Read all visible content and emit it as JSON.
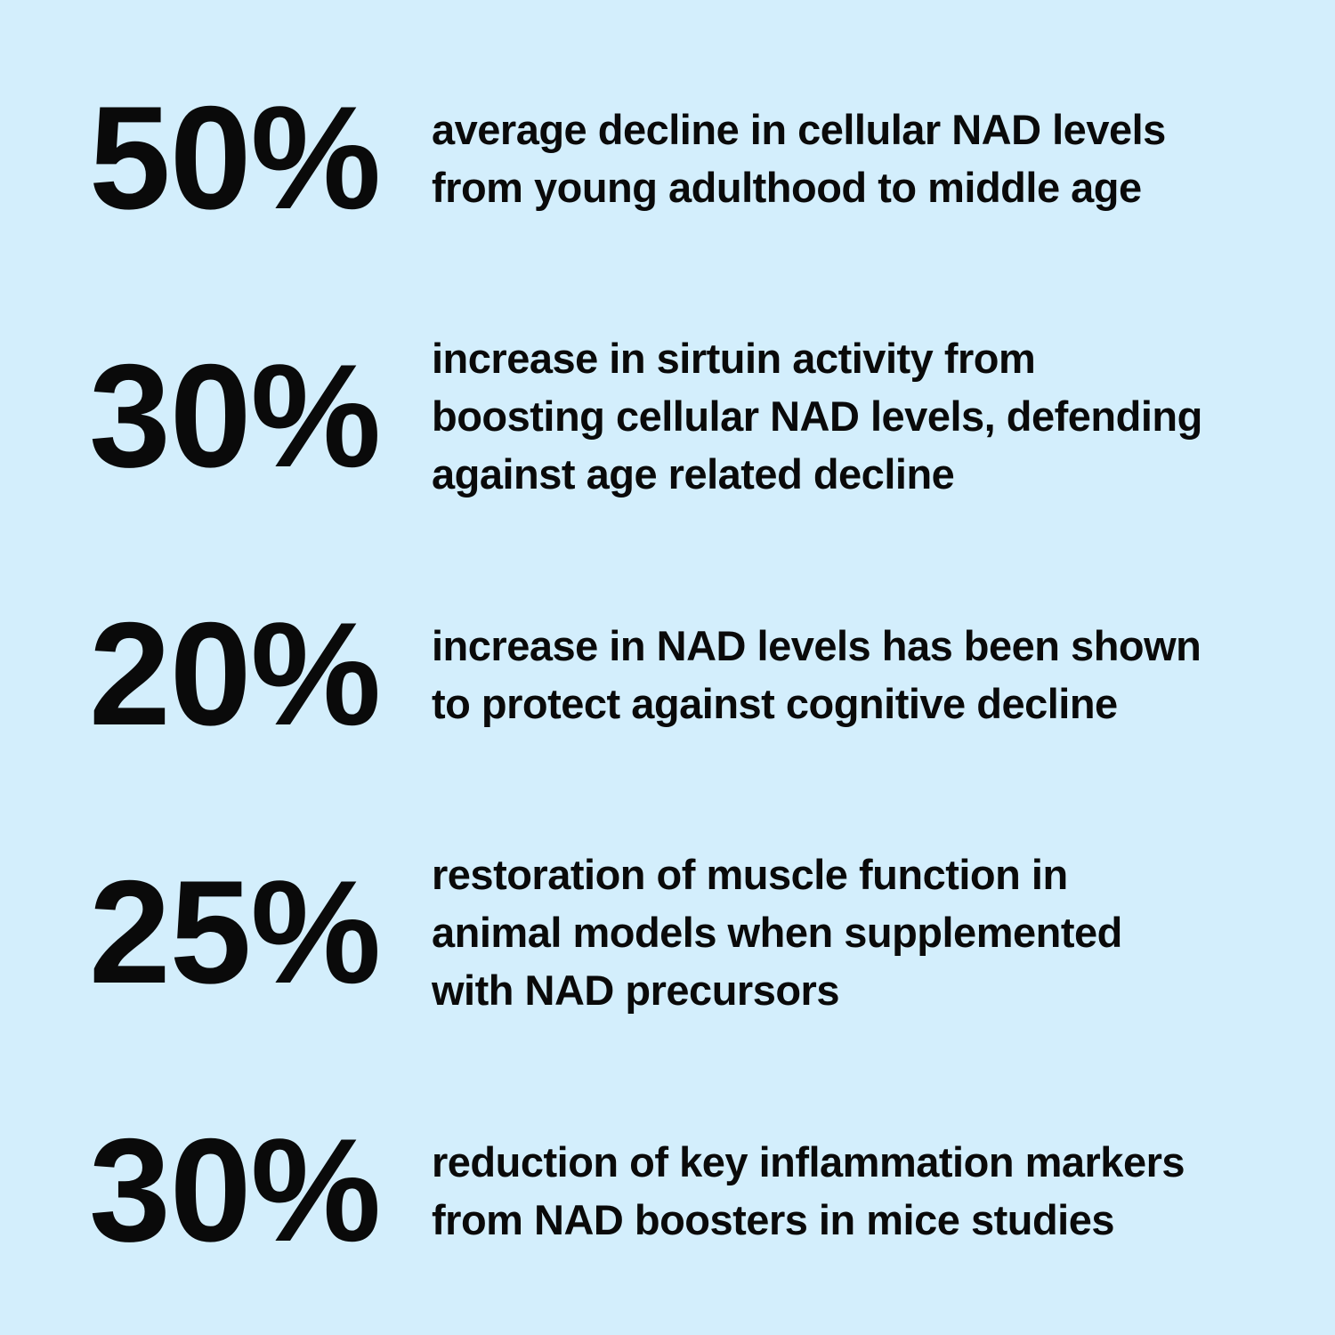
{
  "colors": {
    "background": "#d3eefc",
    "text": "#0a0a0a"
  },
  "stats": [
    {
      "value": "50%",
      "lines": [
        "average decline in cellular NAD levels",
        "from young adulthood to middle age"
      ]
    },
    {
      "value": "30%",
      "lines": [
        "increase in sirtuin activity from",
        "boosting cellular NAD levels, defending",
        "against age related decline"
      ]
    },
    {
      "value": "20%",
      "lines": [
        "increase in NAD levels has been shown",
        "to protect against cognitive decline"
      ]
    },
    {
      "value": "25%",
      "lines": [
        "restoration of muscle function in",
        "animal models when supplemented",
        "with NAD precursors"
      ]
    },
    {
      "value": "30%",
      "lines": [
        "reduction of key inflammation markers",
        "from NAD boosters in mice studies"
      ]
    }
  ]
}
